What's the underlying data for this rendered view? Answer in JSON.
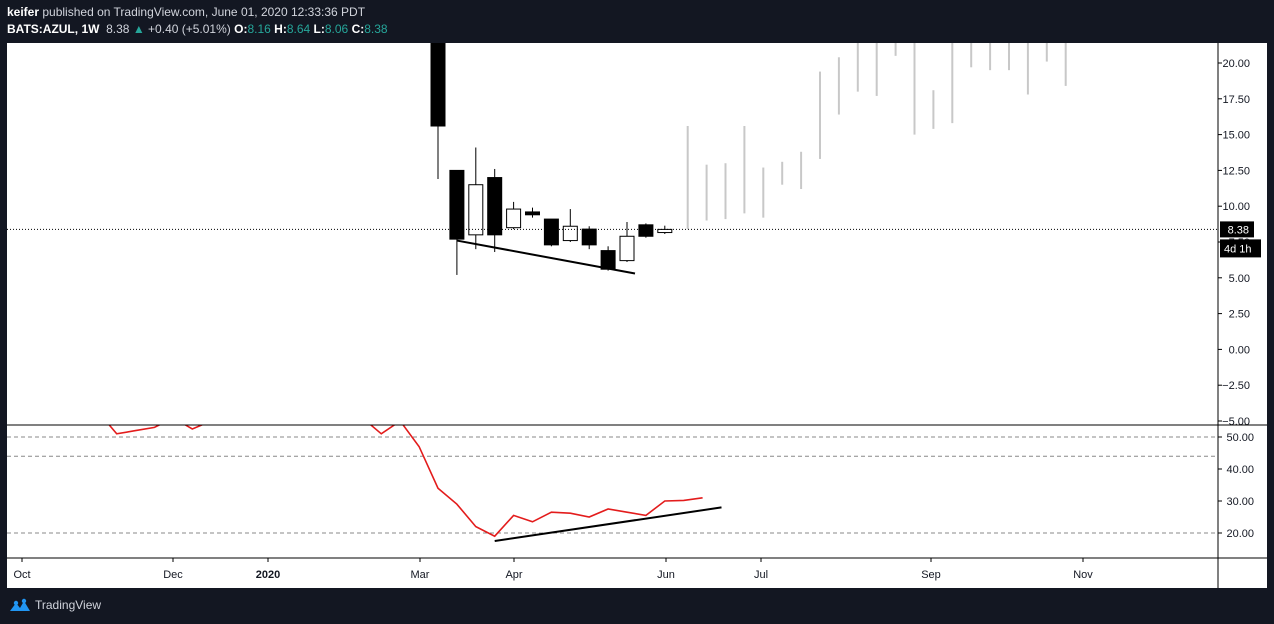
{
  "header": {
    "author": "keifer",
    "published_text": " published on TradingView.com, June 01, 2020 12:33:36 PDT",
    "symbol": "BATS:AZUL",
    "timeframe": "1W",
    "last": "8.38",
    "change": "+0.40 (+5.01%)",
    "o_label": "O:",
    "o_value": "8.16",
    "h_label": "H:",
    "h_value": "8.64",
    "l_label": "L:",
    "l_value": "8.06",
    "c_label": "C:",
    "c_value": "8.38"
  },
  "footer": {
    "logo_text": "TradingView"
  },
  "colors": {
    "background": "#131722",
    "plot": "#ffffff",
    "rsi_line": "#e31c1c",
    "up_change": "#26a69a",
    "ghost_bars": "#c8c8c8"
  },
  "chart_data": [
    {
      "type": "candlestick",
      "ylim": [
        -5,
        21.5
      ],
      "y_ticks": [
        "20.00",
        "17.50",
        "15.00",
        "12.50",
        "10.00",
        "7.50",
        "5.00",
        "2.50",
        "0.00",
        "−2.50",
        "−5.00"
      ],
      "last_price_label": "8.38",
      "countdown_label": "4d 1h",
      "x_tick_labels": [
        {
          "label": "Oct",
          "bold": false
        },
        {
          "label": "Dec",
          "bold": false
        },
        {
          "label": "2020",
          "bold": true
        },
        {
          "label": "Mar",
          "bold": false
        },
        {
          "label": "Apr",
          "bold": false
        },
        {
          "label": "Jun",
          "bold": false
        },
        {
          "label": "Jul",
          "bold": false
        },
        {
          "label": "Sep",
          "bold": false
        },
        {
          "label": "Nov",
          "bold": false
        }
      ],
      "candles": [
        {
          "date": "2020-03-02",
          "open": 21.5,
          "high": 21.5,
          "low": 11.9,
          "close": 15.6
        },
        {
          "date": "2020-03-09",
          "open": 12.5,
          "high": 12.5,
          "low": 5.2,
          "close": 7.7
        },
        {
          "date": "2020-03-16",
          "open": 8.0,
          "high": 14.1,
          "low": 7.0,
          "close": 11.5
        },
        {
          "date": "2020-03-23",
          "open": 12.0,
          "high": 12.6,
          "low": 6.8,
          "close": 8.0
        },
        {
          "date": "2020-03-30",
          "open": 8.5,
          "high": 10.3,
          "low": 8.4,
          "close": 9.8
        },
        {
          "date": "2020-04-06",
          "open": 9.6,
          "high": 9.9,
          "low": 9.2,
          "close": 9.4
        },
        {
          "date": "2020-04-13",
          "open": 9.1,
          "high": 9.1,
          "low": 7.2,
          "close": 7.3
        },
        {
          "date": "2020-04-20",
          "open": 7.6,
          "high": 9.8,
          "low": 7.5,
          "close": 8.6
        },
        {
          "date": "2020-04-27",
          "open": 8.4,
          "high": 8.6,
          "low": 7.0,
          "close": 7.3
        },
        {
          "date": "2020-05-04",
          "open": 6.9,
          "high": 7.2,
          "low": 5.5,
          "close": 5.6
        },
        {
          "date": "2020-05-11",
          "open": 6.2,
          "high": 8.9,
          "low": 6.1,
          "close": 7.9
        },
        {
          "date": "2020-05-18",
          "open": 8.7,
          "high": 8.8,
          "low": 7.8,
          "close": 7.9
        },
        {
          "date": "2020-05-25",
          "open": 8.16,
          "high": 8.64,
          "low": 8.06,
          "close": 8.38
        }
      ],
      "ghost_bars": [
        {
          "low": 8.4,
          "high": 15.6
        },
        {
          "low": 9.0,
          "high": 12.9
        },
        {
          "low": 9.1,
          "high": 13.0
        },
        {
          "low": 9.5,
          "high": 15.6
        },
        {
          "low": 9.2,
          "high": 12.7
        },
        {
          "low": 11.5,
          "high": 13.1
        },
        {
          "low": 11.2,
          "high": 13.8
        },
        {
          "low": 13.3,
          "high": 19.4
        },
        {
          "low": 16.4,
          "high": 20.4
        },
        {
          "low": 18.0,
          "high": 21.5
        },
        {
          "low": 17.7,
          "high": 21.5
        },
        {
          "low": 20.5,
          "high": 21.5
        },
        {
          "low": 15.0,
          "high": 21.5
        },
        {
          "low": 15.4,
          "high": 18.1
        },
        {
          "low": 15.8,
          "high": 21.5
        },
        {
          "low": 19.7,
          "high": 21.5
        },
        {
          "low": 19.5,
          "high": 21.5
        },
        {
          "low": 19.5,
          "high": 21.5
        },
        {
          "low": 17.8,
          "high": 21.5
        },
        {
          "low": 20.1,
          "high": 21.5
        },
        {
          "low": 18.4,
          "high": 21.5
        }
      ],
      "trendline": {
        "from": {
          "date": "2020-03-09",
          "value": 7.6
        },
        "to": {
          "date": "2020-05-11",
          "value": 5.3
        }
      }
    },
    {
      "type": "line",
      "ylim": [
        13,
        56
      ],
      "y_ticks": [
        "50.00",
        "40.00",
        "30.00",
        "20.00"
      ],
      "dashed_levels": [
        50,
        44,
        20
      ],
      "series": [
        {
          "values": [
            {
              "date": "2019-10-07",
              "value": 58
            },
            {
              "date": "2019-10-14",
              "value": 57
            },
            {
              "date": "2019-10-21",
              "value": 56
            },
            {
              "date": "2019-10-28",
              "value": 58
            },
            {
              "date": "2019-11-04",
              "value": 51
            },
            {
              "date": "2019-11-11",
              "value": 52
            },
            {
              "date": "2019-11-18",
              "value": 53
            },
            {
              "date": "2019-11-25",
              "value": 56
            },
            {
              "date": "2019-12-02",
              "value": 52.5
            },
            {
              "date": "2019-12-09",
              "value": 55
            },
            {
              "date": "2020-02-03",
              "value": 56
            },
            {
              "date": "2020-02-10",
              "value": 51
            },
            {
              "date": "2020-02-17",
              "value": 55
            },
            {
              "date": "2020-02-24",
              "value": 47
            },
            {
              "date": "2020-03-02",
              "value": 34
            },
            {
              "date": "2020-03-09",
              "value": 29
            },
            {
              "date": "2020-03-16",
              "value": 22
            },
            {
              "date": "2020-03-23",
              "value": 19
            },
            {
              "date": "2020-03-30",
              "value": 25.5
            },
            {
              "date": "2020-04-06",
              "value": 23.5
            },
            {
              "date": "2020-04-13",
              "value": 26.5
            },
            {
              "date": "2020-04-20",
              "value": 26.2
            },
            {
              "date": "2020-04-27",
              "value": 25
            },
            {
              "date": "2020-05-04",
              "value": 27.5
            },
            {
              "date": "2020-05-11",
              "value": 26.5
            },
            {
              "date": "2020-05-18",
              "value": 25.5
            },
            {
              "date": "2020-05-25",
              "value": 30
            },
            {
              "date": "2020-06-01",
              "value": 30.2
            },
            {
              "date": "2020-06-08",
              "value": 31
            }
          ]
        }
      ],
      "trendline": {
        "from": {
          "date": "2020-03-23",
          "value": 17.5
        },
        "to": {
          "date": "2020-06-15",
          "value": 28
        }
      }
    }
  ]
}
